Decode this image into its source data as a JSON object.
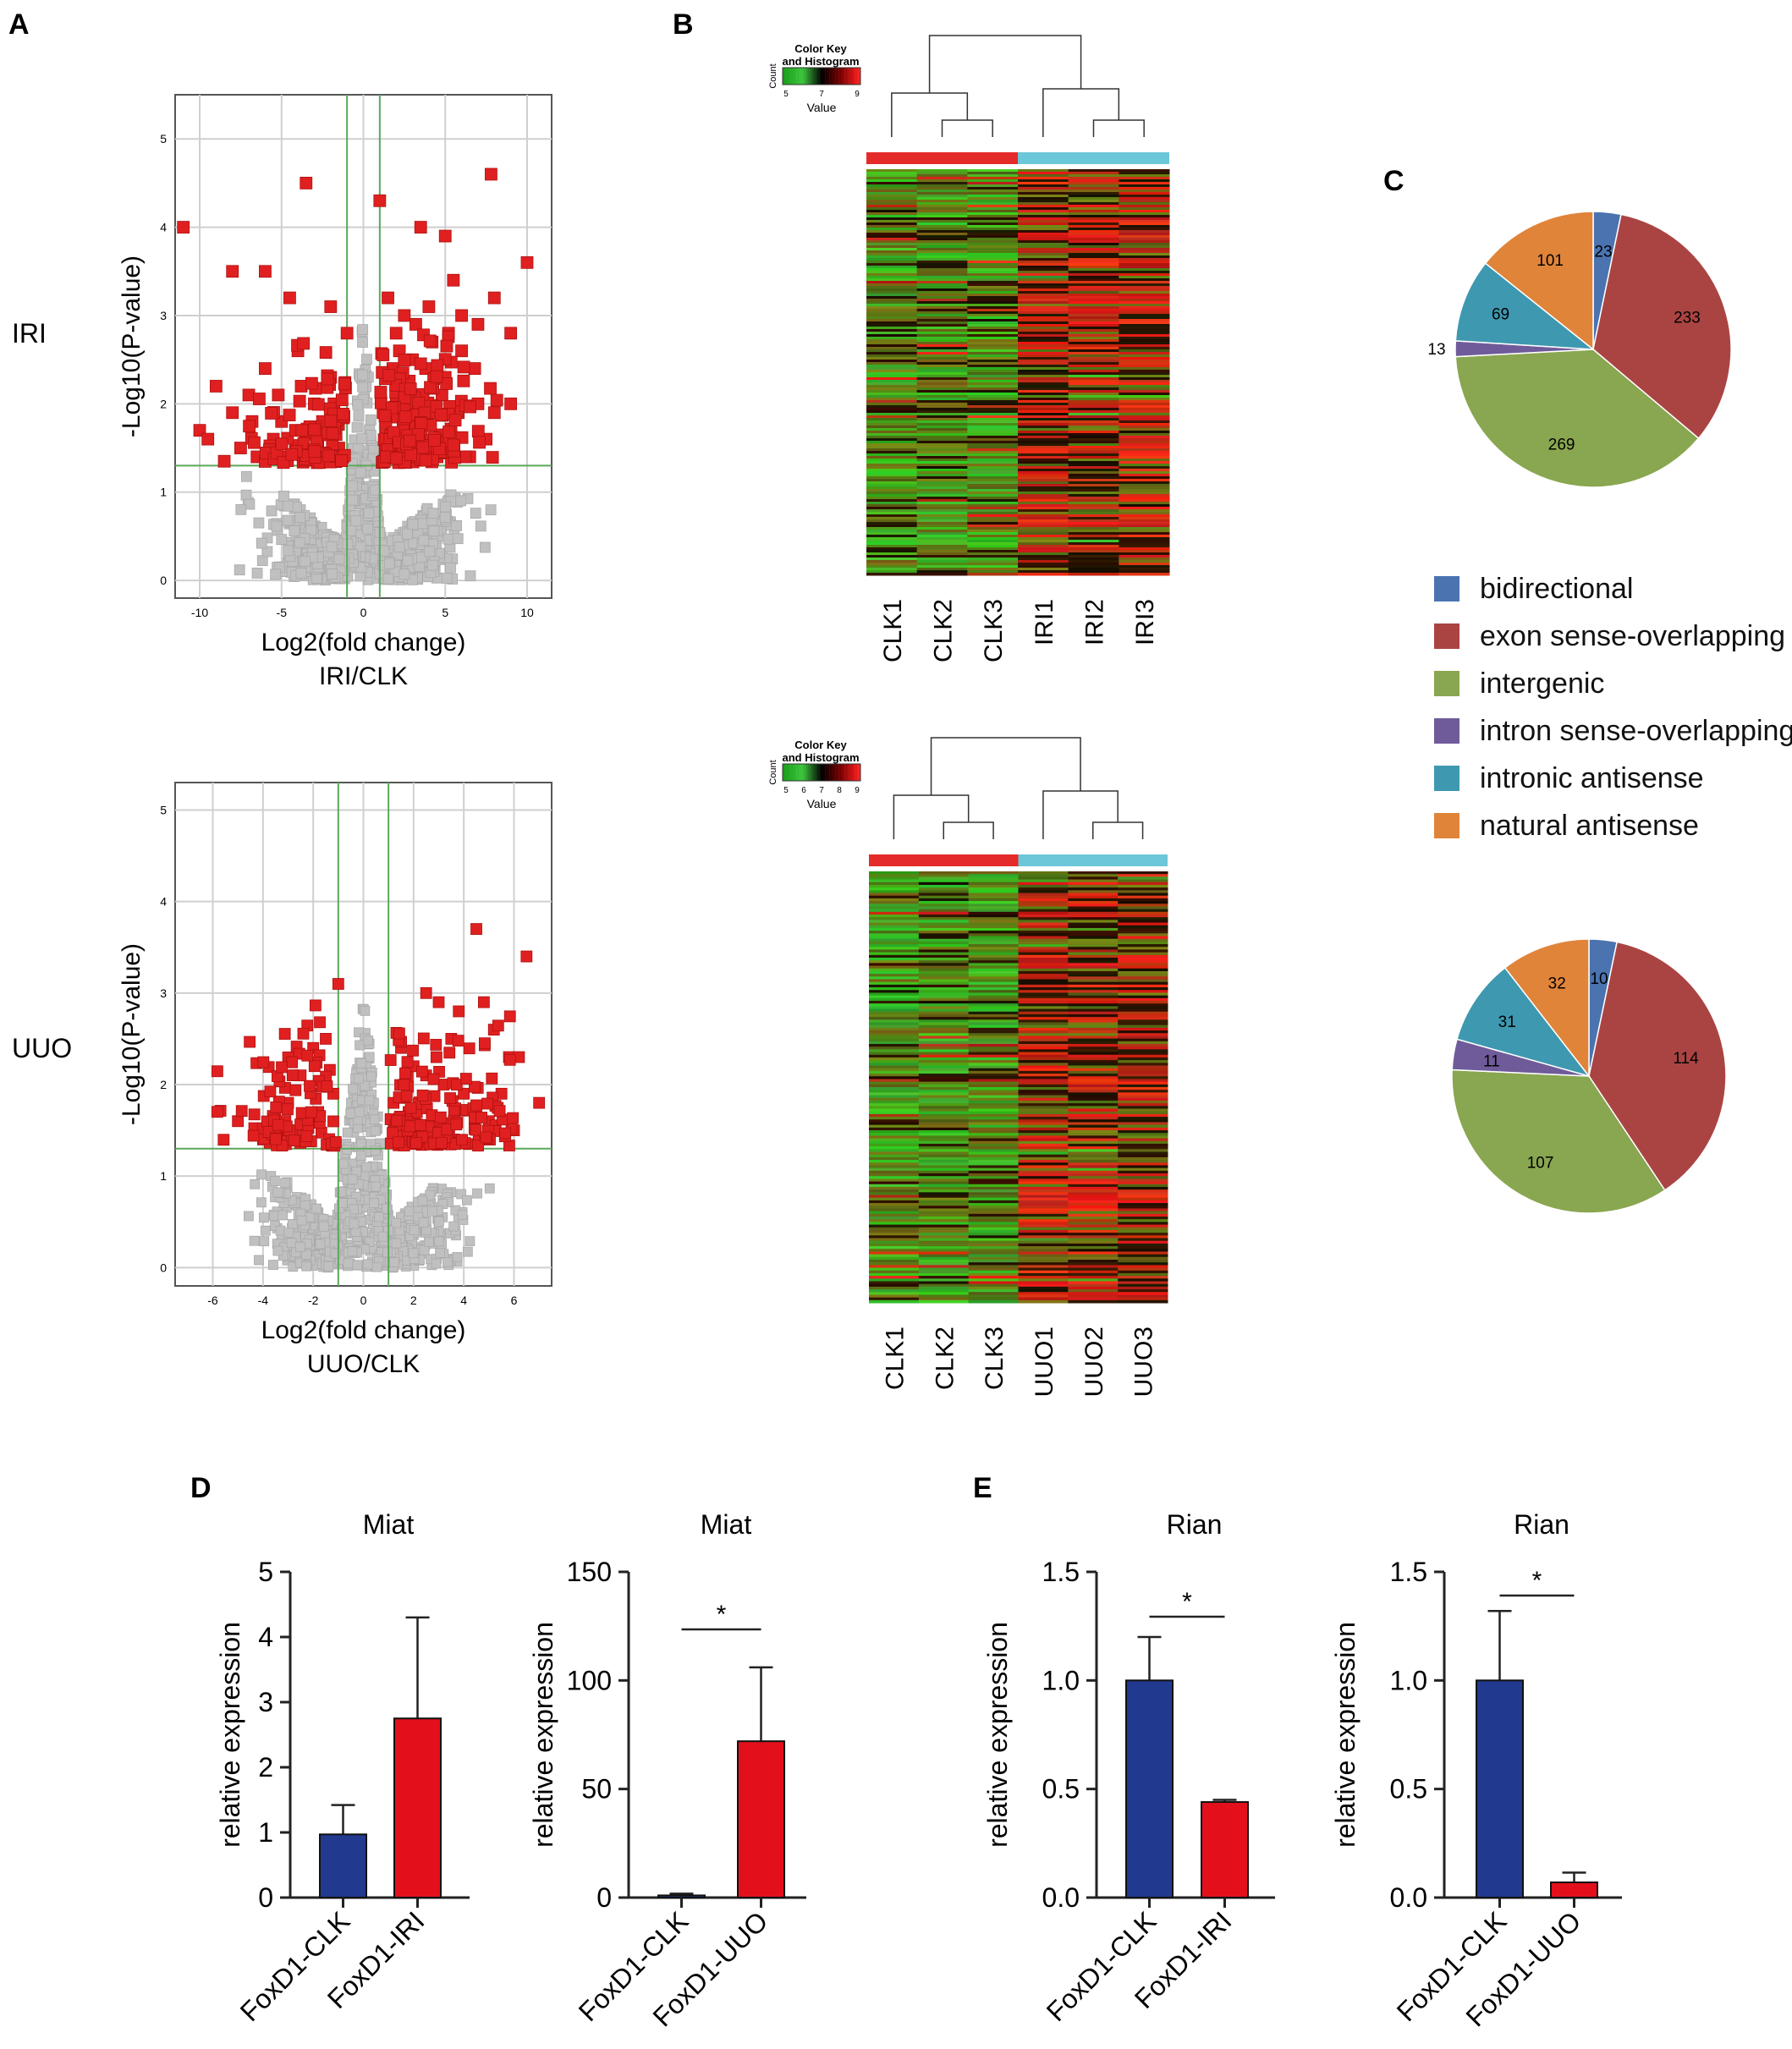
{
  "panel_labels": {
    "a": "A",
    "b": "B",
    "c": "C",
    "d": "D",
    "e": "E"
  },
  "row_labels": {
    "iri": "IRI",
    "uuo": "UUO"
  },
  "colors": {
    "up_down": "#e02020",
    "nonsig": "#c0c0c0",
    "threshold": "#5aa85a",
    "bar_clk": "#213a8f",
    "bar_treat": "#e3101c",
    "heat_group_clk": "#e52a2a",
    "heat_group_treat": "#6cc7d9"
  },
  "heatmap_labels": {
    "color_key_title": "Color Key",
    "color_key_sub": "and Histogram",
    "count": "Count",
    "value": "Value",
    "key_ticks_iri": [
      "5",
      "7",
      "9"
    ],
    "key_ticks_uuo": [
      "5",
      "6",
      "7",
      "8",
      "9"
    ],
    "samples_iri": [
      "CLK1",
      "CLK2",
      "CLK3",
      "IRI1",
      "IRI2",
      "IRI3"
    ],
    "samples_uuo": [
      "CLK1",
      "CLK2",
      "CLK3",
      "UUO1",
      "UUO2",
      "UUO3"
    ]
  },
  "chart_data": [
    {
      "id": "volcano_iri",
      "type": "scatter",
      "title": "",
      "xlabel": "Log2(fold change)",
      "xsublabel": "IRI/CLK",
      "ylabel": "-Log10(P-value)",
      "xlim": [
        -11.5,
        11.5
      ],
      "ylim": [
        -0.2,
        5.5
      ],
      "xticks": [
        -10,
        -5,
        0,
        5,
        10
      ],
      "yticks": [
        0,
        1,
        2,
        3,
        4,
        5
      ],
      "thresholds": {
        "x": [
          -1,
          1
        ],
        "y": 1.3
      },
      "significant_points": [
        [
          -11,
          4.0
        ],
        [
          -3.5,
          4.5
        ],
        [
          1,
          4.3
        ],
        [
          7.8,
          4.6
        ],
        [
          10,
          3.6
        ],
        [
          3.5,
          4.0
        ],
        [
          5,
          3.9
        ],
        [
          -8,
          3.5
        ],
        [
          -6,
          3.5
        ],
        [
          -4.5,
          3.2
        ],
        [
          -2,
          3.1
        ],
        [
          -1,
          2.8
        ],
        [
          1.5,
          3.2
        ],
        [
          2,
          2.8
        ],
        [
          2.5,
          3.0
        ],
        [
          4,
          3.1
        ],
        [
          5.5,
          3.4
        ],
        [
          6,
          3.0
        ],
        [
          7,
          2.9
        ],
        [
          8,
          3.2
        ],
        [
          9,
          2.8
        ],
        [
          -9,
          2.2
        ],
        [
          -8,
          1.9
        ],
        [
          -7,
          2.1
        ],
        [
          -6,
          2.4
        ],
        [
          -5,
          1.8
        ],
        [
          -4,
          2.6
        ],
        [
          -3,
          2.0
        ],
        [
          -2,
          2.3
        ],
        [
          2,
          2.0
        ],
        [
          3,
          2.5
        ],
        [
          4,
          1.9
        ],
        [
          5,
          2.3
        ],
        [
          6,
          2.6
        ],
        [
          7,
          2.0
        ],
        [
          8,
          1.9
        ],
        [
          9,
          2.0
        ],
        [
          -10,
          1.7
        ],
        [
          -9.5,
          1.6
        ],
        [
          -7.5,
          1.5
        ],
        [
          -6.5,
          1.4
        ],
        [
          -5.5,
          1.6
        ],
        [
          -4,
          1.5
        ],
        [
          -3,
          1.4
        ],
        [
          -1.5,
          1.5
        ],
        [
          1.5,
          1.6
        ],
        [
          2.5,
          1.5
        ],
        [
          3.5,
          1.7
        ],
        [
          4.5,
          1.4
        ],
        [
          5.5,
          1.5
        ],
        [
          6.5,
          1.4
        ],
        [
          7.5,
          1.6
        ],
        [
          -8.5,
          1.35
        ],
        [
          -2.5,
          1.8
        ],
        [
          1.2,
          1.9
        ],
        [
          1.8,
          2.4
        ],
        [
          2.8,
          2.2
        ],
        [
          3.8,
          2.4
        ],
        [
          4.8,
          2.1
        ],
        [
          5.8,
          1.9
        ],
        [
          6.8,
          2.4
        ],
        [
          -1.8,
          2.0
        ],
        [
          -3.8,
          2.2
        ],
        [
          -5.2,
          2.1
        ],
        [
          -6.8,
          1.8
        ],
        [
          3.2,
          2.9
        ],
        [
          4.2,
          2.7
        ],
        [
          2.2,
          2.6
        ],
        [
          5.2,
          2.8
        ]
      ],
      "n_significant_total": 708
    },
    {
      "id": "volcano_uuo",
      "type": "scatter",
      "title": "",
      "xlabel": "Log2(fold change)",
      "xsublabel": "UUO/CLK",
      "ylabel": "-Log10(P-value)",
      "xlim": [
        -7.5,
        7.5
      ],
      "ylim": [
        -0.2,
        5.3
      ],
      "xticks": [
        -6,
        -4,
        -2,
        0,
        2,
        4,
        6
      ],
      "yticks": [
        0,
        1,
        2,
        3,
        4,
        5
      ],
      "thresholds": {
        "x": [
          -1,
          1
        ],
        "y": 1.3
      },
      "significant_points": [
        [
          4.5,
          3.7
        ],
        [
          6.5,
          3.4
        ],
        [
          2.5,
          3.0
        ],
        [
          3,
          2.9
        ],
        [
          3.8,
          2.8
        ],
        [
          4.8,
          2.9
        ],
        [
          5.2,
          2.6
        ],
        [
          3.5,
          2.5
        ],
        [
          5.8,
          2.3
        ],
        [
          6.2,
          2.3
        ],
        [
          7,
          1.8
        ],
        [
          -1,
          3.1
        ],
        [
          -1.5,
          2.5
        ],
        [
          -2,
          2.4
        ],
        [
          -2.5,
          2.1
        ],
        [
          -3,
          1.8
        ],
        [
          -3.5,
          1.5
        ],
        [
          -4,
          1.4
        ],
        [
          -5,
          1.6
        ],
        [
          1.5,
          2.4
        ],
        [
          2,
          2.2
        ],
        [
          2.5,
          2.1
        ],
        [
          3.2,
          2.0
        ],
        [
          4,
          1.9
        ],
        [
          4.5,
          1.7
        ],
        [
          5,
          1.6
        ],
        [
          5.5,
          1.9
        ],
        [
          1.2,
          1.8
        ],
        [
          1.8,
          1.7
        ],
        [
          2.8,
          1.6
        ],
        [
          3.6,
          1.4
        ],
        [
          -1.2,
          1.9
        ],
        [
          -1.8,
          1.7
        ],
        [
          -2.2,
          1.6
        ],
        [
          -2.8,
          1.5
        ],
        [
          -3.2,
          1.35
        ],
        [
          1.4,
          1.4
        ],
        [
          2.2,
          1.45
        ],
        [
          4.2,
          1.35
        ],
        [
          6,
          1.5
        ]
      ],
      "n_significant_total": 305
    },
    {
      "id": "pie_iri",
      "type": "pie",
      "labels": [
        "bidirectional",
        "exon sense-overlapping",
        "intergenic",
        "intron sense-overlapping",
        "intronic antisense",
        "natural antisense"
      ],
      "values": [
        23,
        233,
        269,
        13,
        69,
        101
      ],
      "colors": [
        "#4a73b0",
        "#aa4443",
        "#89a650",
        "#6f5b9a",
        "#3e98b0",
        "#e0843a"
      ]
    },
    {
      "id": "pie_uuo",
      "type": "pie",
      "labels": [
        "bidirectional",
        "exon sense-overlapping",
        "intergenic",
        "intron sense-overlapping",
        "intronic antisense",
        "natural antisense"
      ],
      "values": [
        10,
        114,
        107,
        11,
        31,
        32
      ],
      "colors": [
        "#4a73b0",
        "#aa4443",
        "#89a650",
        "#6f5b9a",
        "#3e98b0",
        "#e0843a"
      ]
    },
    {
      "id": "bar_miat_iri",
      "type": "bar",
      "title": "Miat",
      "ylabel": "relative expression",
      "categories": [
        "FoxD1-CLK",
        "FoxD1-IRI"
      ],
      "values": [
        0.97,
        2.75
      ],
      "errors": [
        0.45,
        1.55
      ],
      "ylim": [
        0,
        5
      ],
      "yticks": [
        "0",
        "1",
        "2",
        "3",
        "4",
        "5"
      ],
      "significance": ""
    },
    {
      "id": "bar_miat_uuo",
      "type": "bar",
      "title": "Miat",
      "ylabel": "relative expression",
      "categories": [
        "FoxD1-CLK",
        "FoxD1-UUO"
      ],
      "values": [
        1,
        72
      ],
      "errors": [
        0.8,
        34
      ],
      "ylim": [
        0,
        150
      ],
      "yticks": [
        "0",
        "50",
        "100",
        "150"
      ],
      "significance": "*"
    },
    {
      "id": "bar_rian_iri",
      "type": "bar",
      "title": "Rian",
      "ylabel": "relative expression",
      "categories": [
        "FoxD1-CLK",
        "FoxD1-IRI"
      ],
      "values": [
        1.0,
        0.44
      ],
      "errors": [
        0.2,
        0.01
      ],
      "ylim": [
        0,
        1.5
      ],
      "yticks": [
        "0.0",
        "0.5",
        "1.0",
        "1.5"
      ],
      "significance": "*"
    },
    {
      "id": "bar_rian_uuo",
      "type": "bar",
      "title": "Rian",
      "ylabel": "relative expression",
      "categories": [
        "FoxD1-CLK",
        "FoxD1-UUO"
      ],
      "values": [
        1.0,
        0.07
      ],
      "errors": [
        0.32,
        0.045
      ],
      "ylim": [
        0,
        1.5
      ],
      "yticks": [
        "0.0",
        "0.5",
        "1.0",
        "1.5"
      ],
      "significance": "*"
    }
  ]
}
